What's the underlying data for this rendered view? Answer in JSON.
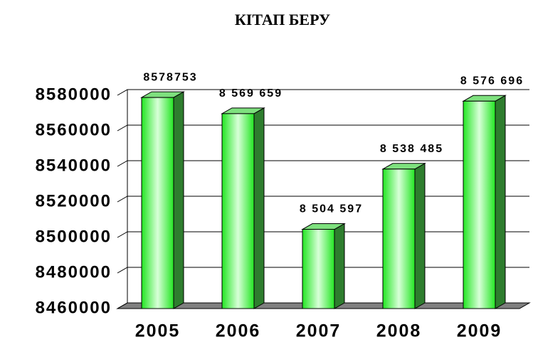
{
  "chart_data": {
    "type": "bar3d",
    "title": "КІТАП БЕРУ",
    "categories": [
      "2005",
      "2006",
      "2007",
      "2008",
      "2009"
    ],
    "values": [
      8578753,
      8569659,
      8504597,
      8538485,
      8576696
    ],
    "value_labels": [
      "8578753",
      "8 569 659",
      "8 504 597",
      "8 538 485",
      "8 576 696"
    ],
    "color": "#33ee33",
    "ylim": [
      8460000,
      8580000
    ],
    "yticks": [
      8460000,
      8480000,
      8500000,
      8520000,
      8540000,
      8560000,
      8580000
    ],
    "grid": true
  }
}
